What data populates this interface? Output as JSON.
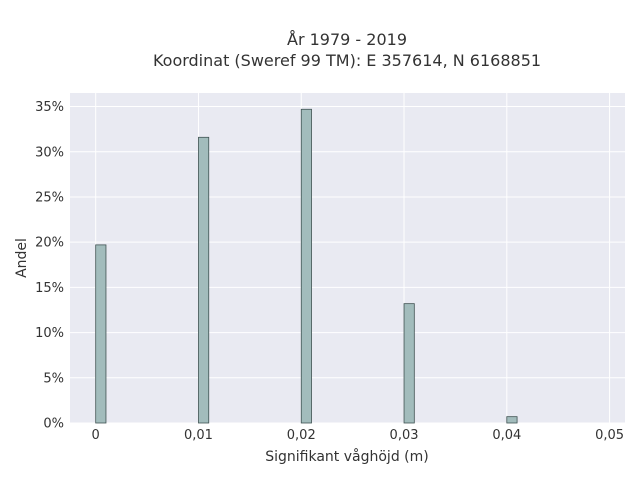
{
  "chart_data": {
    "type": "bar",
    "title_lines": [
      "År 1979 - 2019",
      "Koordinat (Sweref 99 TM): E 357614, N 6168851"
    ],
    "xlabel": "Signifikant våghöjd (m)",
    "ylabel": "Andel",
    "x": [
      0,
      0.01,
      0.02,
      0.03,
      0.04
    ],
    "values": [
      19.7,
      31.6,
      34.7,
      13.2,
      0.7
    ],
    "xlim": [
      -0.0025,
      0.0515
    ],
    "ylim": [
      0,
      36.5
    ],
    "xticks": [
      0,
      0.01,
      0.02,
      0.03,
      0.04,
      0.05
    ],
    "xtick_labels": [
      "0",
      "0,01",
      "0,02",
      "0,03",
      "0,04",
      "0,05"
    ],
    "yticks": [
      0,
      5,
      10,
      15,
      20,
      25,
      30,
      35
    ],
    "ytick_labels": [
      "0%",
      "5%",
      "10%",
      "15%",
      "20%",
      "25%",
      "30%",
      "35%"
    ],
    "grid": true,
    "colors": {
      "bar_fill": "#a2bcbc",
      "bar_stroke": "#3f5252",
      "plot_bg": "#e9eaf2",
      "grid": "#ffffff"
    }
  }
}
